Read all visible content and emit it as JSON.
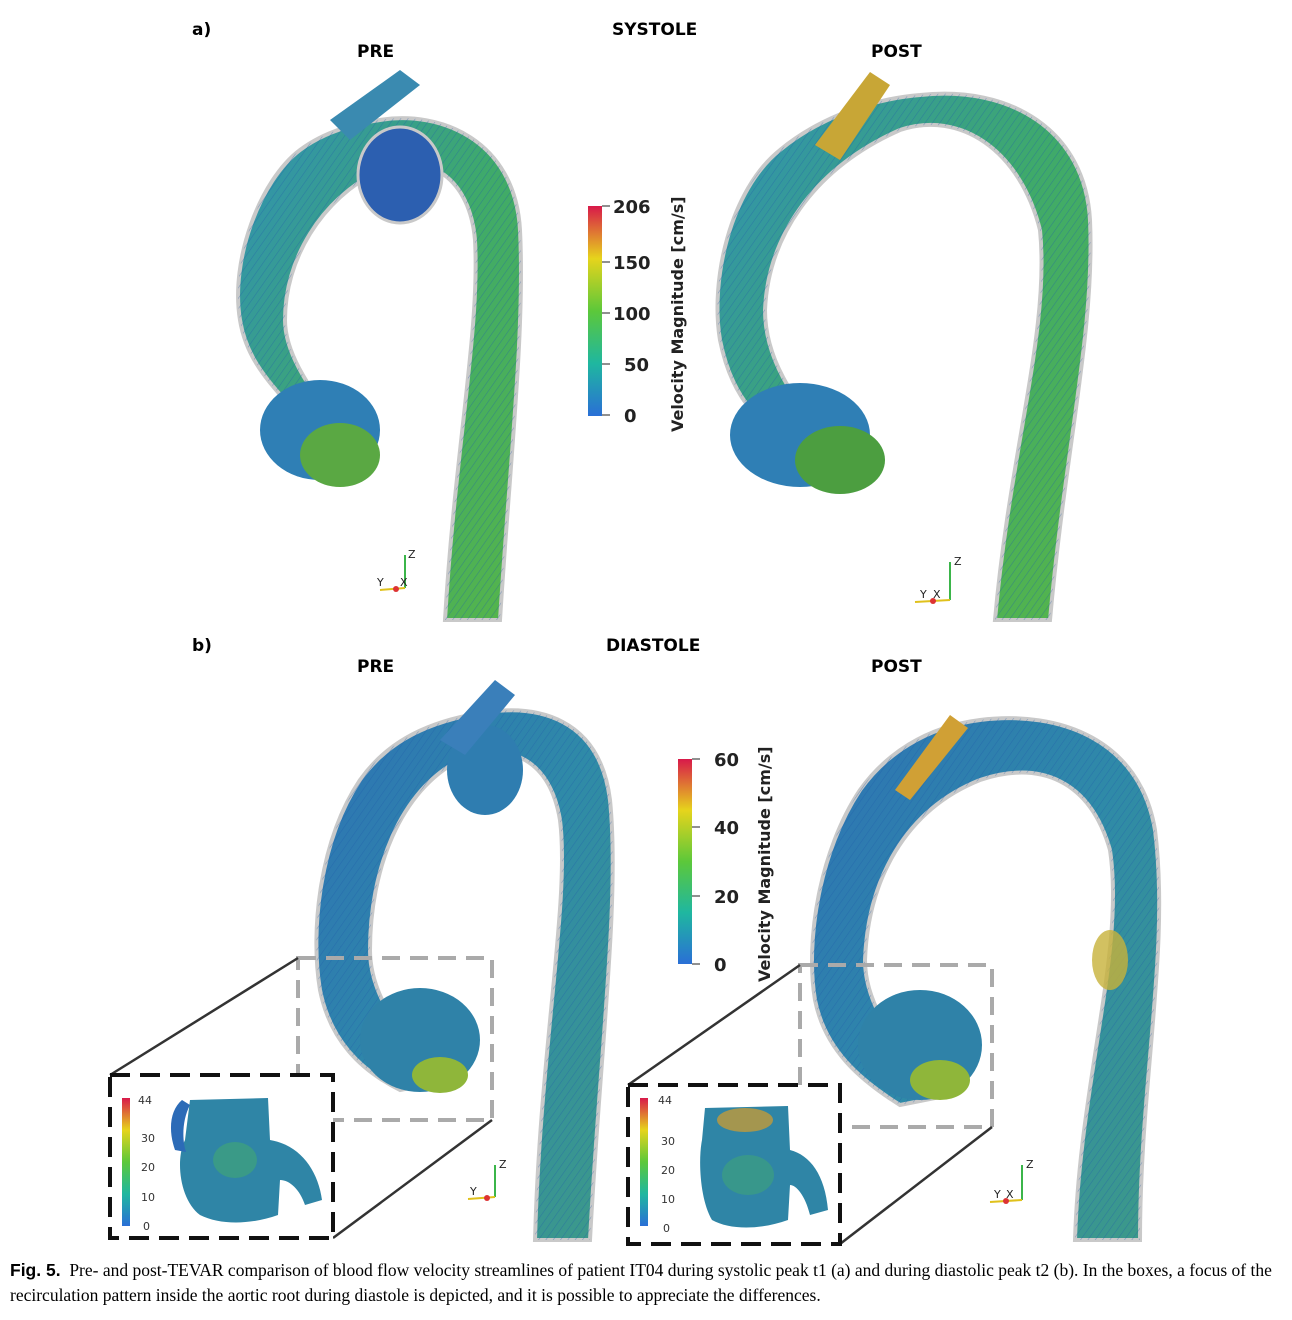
{
  "panel_a": {
    "tag": "a)",
    "phase": "SYSTOLE",
    "pre": "PRE",
    "post": "POST",
    "colorbar": {
      "title": "Velocity Magnitude  [cm/s]",
      "ticks": [
        "206",
        "150",
        "100",
        "50",
        "0"
      ]
    }
  },
  "panel_b": {
    "tag": "b)",
    "phase": "DIASTOLE",
    "pre": "PRE",
    "post": "POST",
    "colorbar": {
      "title": "Velocity Magnitude  [cm/s]",
      "ticks": [
        "60",
        "40",
        "20",
        "0"
      ]
    },
    "inset_ticks": [
      "44",
      "30",
      "20",
      "10",
      "0"
    ]
  },
  "axes": {
    "z": "Z",
    "y": "Y",
    "x": "X"
  },
  "caption": {
    "label": "Fig. 5.",
    "text": "Pre- and post-TEVAR comparison of blood flow velocity streamlines of patient IT04 during systolic peak t1 (a) and during diastolic peak t2 (b). In the boxes, a focus of the recirculation pattern inside the aortic root during diastole is depicted, and it is possible to appreciate the differences."
  },
  "colors": {
    "low": "#2a6fd6",
    "mid_low": "#1fb7a0",
    "mid": "#5cc83a",
    "mid_high": "#e6d41c",
    "high": "#d8194a"
  }
}
